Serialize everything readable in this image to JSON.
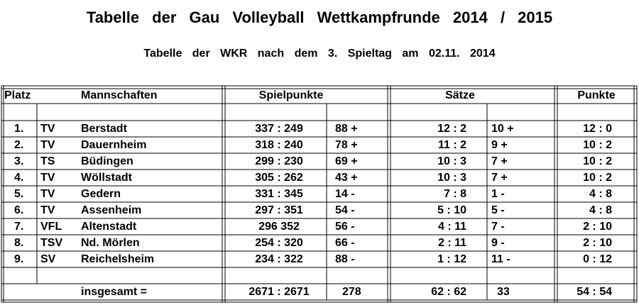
{
  "title": "Tabelle der Gau Volleyball Wettkampfrunde 2014 / 2015",
  "subtitle": "Tabelle der WKR nach dem 3. Spieltag am 02.11. 2014",
  "table": {
    "header": [
      "Platz",
      "Mannschaften",
      "Spielpunkte",
      "Sätze",
      "Punkte"
    ],
    "rows": [
      [
        "1.",
        "TV",
        "Berstadt",
        "337 : 249",
        "88 +",
        "12 : 2",
        "10 +",
        "12 : 0"
      ],
      [
        "2.",
        "TV",
        "Dauernheim",
        "318 : 240",
        "78 +",
        "11 : 2",
        "9 +",
        "10 : 2"
      ],
      [
        "3.",
        "TS",
        "Büdingen",
        "299 : 230",
        "69 +",
        "10 : 3",
        "7 +",
        "10 : 2"
      ],
      [
        "4.",
        "TV",
        "Wöllstadt",
        "305 : 262",
        "43 +",
        "10 : 3",
        "7 +",
        "10 : 2"
      ],
      [
        "5.",
        "TV",
        "Gedern",
        "331 : 345",
        "14 -",
        "7 : 8",
        "1 -",
        "4 : 8"
      ],
      [
        "6.",
        "TV",
        "Assenheim",
        "297 : 351",
        "54 -",
        "5 : 10",
        "5 -",
        "4 : 8"
      ],
      [
        "7.",
        "VFL",
        "Altenstadt",
        "296 352",
        "56 -",
        "4 : 11",
        "7 -",
        "2 : 10"
      ],
      [
        "8.",
        "TSV",
        "Nd. Mörlen",
        "254 : 320",
        "66 -",
        "2 : 11",
        "9 -",
        "2 : 10"
      ],
      [
        "9.",
        "SV",
        "Reichelsheim",
        "234 : 322",
        "88 -",
        "1 : 12",
        "11 -",
        "0 : 12"
      ]
    ],
    "total": [
      "insgesamt =",
      "2671 : 2671",
      "278",
      "62 : 62",
      "33",
      "54 : 54"
    ]
  }
}
